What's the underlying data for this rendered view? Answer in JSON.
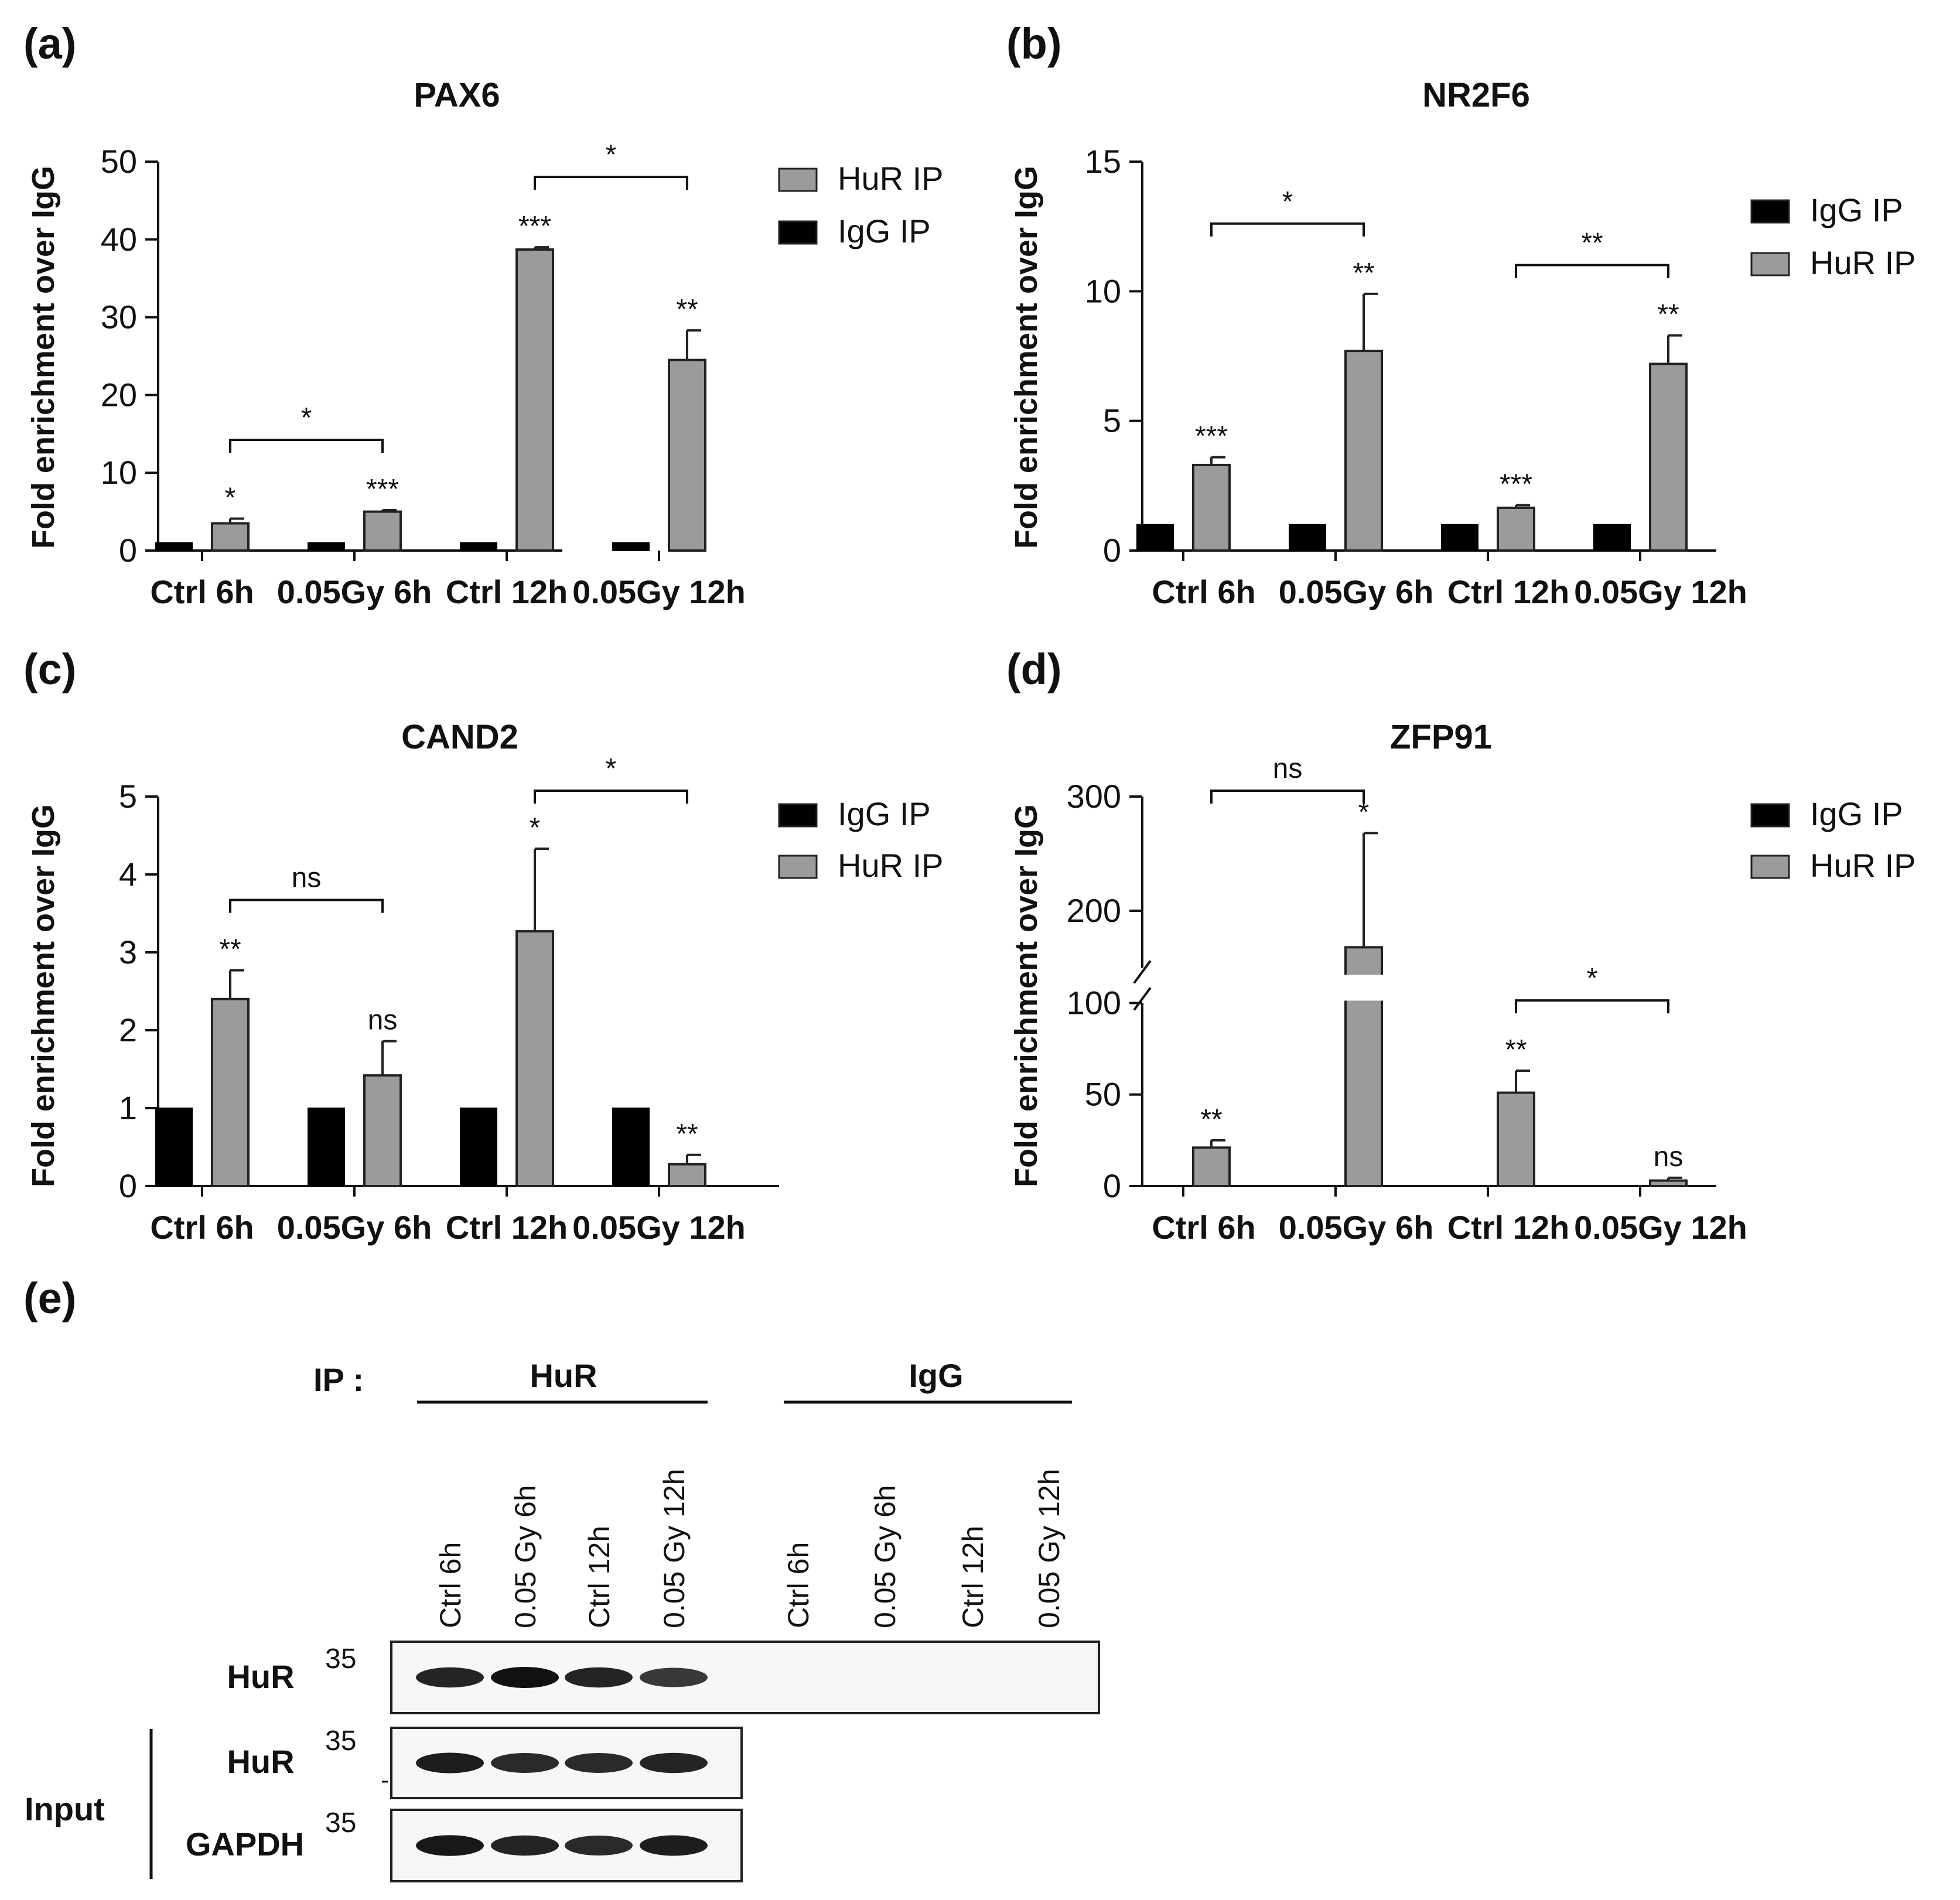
{
  "colors": {
    "igg": "#000000",
    "hur": "#9b9b9b",
    "axis": "#111111"
  },
  "y_axis_label": "Fold enrichment over IgG",
  "categories": [
    "Ctrl 6h",
    "0.05Gy 6h",
    "Ctrl 12h",
    "0.05Gy 12h"
  ],
  "chart_data": [
    {
      "panel": "(a)",
      "title": "PAX6",
      "type": "bar",
      "ylabel": "Fold enrichment over IgG",
      "ylim": [
        0,
        50
      ],
      "yticks": [
        0,
        10,
        20,
        30,
        40,
        50
      ],
      "categories": [
        "Ctrl 6h",
        "0.05Gy 6h",
        "Ctrl 12h",
        "0.05Gy 12h"
      ],
      "legend": [
        "HuR IP",
        "IgG IP"
      ],
      "series": [
        {
          "name": "IgG IP",
          "values": [
            1,
            1,
            1,
            1
          ]
        },
        {
          "name": "HuR IP",
          "values": [
            3.5,
            5.0,
            38.7,
            24.5
          ],
          "errors": [
            0.6,
            0.2,
            0.3,
            3.8
          ]
        }
      ],
      "bar_labels": [
        "*",
        "***",
        "***",
        "**"
      ],
      "brackets": [
        {
          "from": 0,
          "to": 1,
          "label": "*"
        },
        {
          "from": 2,
          "to": 3,
          "label": "*"
        }
      ]
    },
    {
      "panel": "(b)",
      "title": "NR2F6",
      "type": "bar",
      "ylabel": "Fold enrichment over IgG",
      "ylim": [
        0,
        15
      ],
      "yticks": [
        0,
        5,
        10,
        15
      ],
      "ytick_labels": [
        "0",
        "5",
        "10",
        "15"
      ],
      "categories": [
        "Ctrl 6h",
        "0.05Gy 6h",
        "Ctrl 12h",
        "0.05Gy 12h"
      ],
      "legend": [
        "IgG IP",
        "HuR IP"
      ],
      "series": [
        {
          "name": "IgG IP",
          "values": [
            1,
            1,
            1,
            1
          ]
        },
        {
          "name": "HuR IP",
          "values": [
            3.3,
            7.7,
            1.65,
            7.2
          ],
          "errors": [
            0.3,
            2.2,
            0.1,
            1.1
          ]
        }
      ],
      "bar_labels": [
        "***",
        "**",
        "***",
        "**"
      ],
      "brackets": [
        {
          "from": 0,
          "to": 1,
          "label": "*"
        },
        {
          "from": 2,
          "to": 3,
          "label": "**"
        }
      ]
    },
    {
      "panel": "(c)",
      "title": "CAND2",
      "type": "bar",
      "ylabel": "Fold enrichment over IgG",
      "ylim": [
        0,
        5
      ],
      "yticks": [
        0,
        1,
        2,
        3,
        4,
        5
      ],
      "categories": [
        "Ctrl 6h",
        "0.05Gy 6h",
        "Ctrl 12h",
        "0.05Gy 12h"
      ],
      "legend": [
        "IgG IP",
        "HuR IP"
      ],
      "series": [
        {
          "name": "IgG IP",
          "values": [
            1,
            1,
            1,
            1
          ]
        },
        {
          "name": "HuR IP",
          "values": [
            2.4,
            1.42,
            3.27,
            0.28
          ],
          "errors": [
            0.37,
            0.44,
            1.06,
            0.12
          ]
        }
      ],
      "bar_labels": [
        "**",
        "ns",
        "*",
        "**"
      ],
      "brackets": [
        {
          "from": 0,
          "to": 1,
          "label": "ns"
        },
        {
          "from": 2,
          "to": 3,
          "label": "*"
        }
      ]
    },
    {
      "panel": "(d)",
      "title": "ZFP91",
      "type": "bar",
      "ylabel": "Fold enrichment over IgG",
      "ylim": [
        0,
        300
      ],
      "yticks": [
        0,
        50,
        100,
        200,
        300
      ],
      "axis_break": [
        100,
        150
      ],
      "categories": [
        "Ctrl 6h",
        "0.05Gy 6h",
        "Ctrl 12h",
        "0.05Gy 12h"
      ],
      "legend": [
        "IgG IP",
        "HuR IP"
      ],
      "series": [
        {
          "name": "IgG IP",
          "values": [
            1,
            1,
            1,
            1
          ]
        },
        {
          "name": "HuR IP",
          "values": [
            21,
            168,
            51,
            3
          ],
          "errors": [
            4,
            100,
            12,
            1.5
          ]
        }
      ],
      "bar_labels": [
        "**",
        "*",
        "**",
        "ns"
      ],
      "brackets": [
        {
          "from": 0,
          "to": 1,
          "label": "ns"
        },
        {
          "from": 2,
          "to": 3,
          "label": "*"
        }
      ]
    }
  ],
  "blot": {
    "panel": "(e)",
    "ip_label": "IP :",
    "groups": [
      "HuR",
      "IgG"
    ],
    "lanes": [
      "Ctrl 6h",
      "0.05 Gy 6h",
      "Ctrl 12h",
      "0.05 Gy 12h",
      "Ctrl 6h",
      "0.05 Gy 6h",
      "Ctrl 12h",
      "0.05 Gy 12h"
    ],
    "rows": [
      {
        "label": "HuR",
        "marker": "35",
        "intensity": [
          0.85,
          1.0,
          0.85,
          0.7
        ]
      },
      {
        "label": "HuR",
        "marker": "35",
        "intensity": [
          0.9,
          0.8,
          0.8,
          0.85
        ]
      },
      {
        "label": "GAPDH",
        "marker": "35",
        "intensity": [
          0.95,
          0.85,
          0.8,
          0.9
        ]
      }
    ],
    "input_label": "Input"
  }
}
